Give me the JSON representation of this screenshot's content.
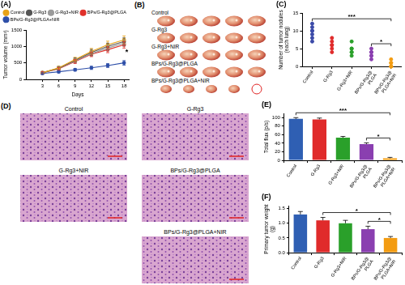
{
  "chart_data": [
    {
      "panel": "(A)",
      "type": "line",
      "x": [
        3,
        6,
        9,
        12,
        15,
        18
      ],
      "xlabel": "Days",
      "ylabel": "Tumor volume (mm³)",
      "xlim": [
        0,
        19
      ],
      "xticks": [
        3,
        6,
        9,
        12,
        15,
        18
      ],
      "ylim": [
        0,
        1500
      ],
      "yticks": [
        0,
        500,
        1000,
        1500
      ],
      "grid": false,
      "legend": "upper left",
      "marker": "circle",
      "series": [
        {
          "name": "Control",
          "color": "#e8a317",
          "values": [
            200,
            350,
            600,
            850,
            1050,
            1200
          ],
          "errors": [
            30,
            50,
            70,
            90,
            110,
            120
          ]
        },
        {
          "name": "G-Rg3",
          "color": "#555555",
          "values": [
            200,
            340,
            580,
            820,
            1000,
            1150
          ],
          "errors": [
            30,
            50,
            70,
            90,
            100,
            110
          ]
        },
        {
          "name": "G-Rg3+NIR",
          "color": "#9a9a9a",
          "values": [
            200,
            330,
            560,
            780,
            950,
            1100
          ],
          "errors": [
            30,
            40,
            60,
            80,
            90,
            100
          ]
        },
        {
          "name": "BPs/G-Rg3@PLGA",
          "color": "#e0302a",
          "values": [
            200,
            320,
            540,
            760,
            900,
            1050
          ],
          "errors": [
            30,
            40,
            60,
            70,
            90,
            100
          ]
        },
        {
          "name": "BPs/G-Rg3@PLGA+NIR",
          "color": "#2e4fa8",
          "values": [
            180,
            230,
            290,
            350,
            420,
            500
          ],
          "errors": [
            20,
            30,
            40,
            50,
            60,
            70
          ]
        }
      ],
      "annotations": [
        {
          "text": "*",
          "x": 18.5,
          "y": 820
        }
      ]
    },
    {
      "panel": "(C)",
      "type": "scatter",
      "categories": [
        "Control",
        "G-Rg3",
        "G-Rg3+NIR",
        "BPs/G-Rg3@PLGA",
        "BPs/G-Rg3@PLGA+NIR"
      ],
      "ylabel": "Number of tumor nodules (each lung)",
      "ylim": [
        0,
        15
      ],
      "yticks": [
        0,
        5,
        10,
        15
      ],
      "grid": false,
      "marker": "circle",
      "colors": [
        "#3b4aa8",
        "#e02b2b",
        "#2aa02a",
        "#8a3fb0",
        "#f39c12"
      ],
      "values": [
        [
          12,
          11,
          10,
          10,
          9,
          8,
          7
        ],
        [
          8,
          7,
          6,
          6,
          5,
          4
        ],
        [
          7,
          5,
          5,
          4,
          4,
          3
        ],
        [
          5,
          4,
          4,
          3,
          3,
          2
        ],
        [
          2,
          1,
          1,
          0,
          0,
          0
        ]
      ],
      "significance": [
        {
          "from": "Control",
          "to": "BPs/G-Rg3@PLGA+NIR",
          "label": "***"
        },
        {
          "from": "BPs/G-Rg3@PLGA",
          "to": "BPs/G-Rg3@PLGA+NIR",
          "label": "*"
        }
      ]
    },
    {
      "panel": "(E)",
      "type": "bar",
      "categories": [
        "Control",
        "G-Rg3",
        "G-Rg3+NIR",
        "BPs/G-Rg3@PLGA",
        "BPs/G-Rg3@PLGA+NIR"
      ],
      "ylabel": "Total flux (p/s)",
      "ylim": [
        0,
        110
      ],
      "yticks": [
        0,
        20,
        40,
        60,
        80,
        100
      ],
      "grid": false,
      "colors": [
        "#2f5fb3",
        "#e02b2b",
        "#2aa02a",
        "#8a3fb0",
        "#f39c12"
      ],
      "values": [
        97,
        96,
        53,
        38,
        5
      ],
      "errors": [
        3,
        3,
        3,
        3,
        2
      ],
      "significance": [
        {
          "from": "Control",
          "to": "BPs/G-Rg3@PLGA+NIR",
          "label": "***"
        },
        {
          "from": "BPs/G-Rg3@PLGA",
          "to": "BPs/G-Rg3@PLGA+NIR",
          "label": "*"
        }
      ]
    },
    {
      "panel": "(F)",
      "type": "bar",
      "categories": [
        "Control",
        "G-Rg3",
        "G-Rg3+NIR",
        "BPs/G-Rg3@PLGA",
        "BPs/G-Rg3@PLGA+NIR"
      ],
      "ylabel": "Primary tumor weight (g)",
      "ylim": [
        0,
        1.6
      ],
      "yticks": [
        {
          "value": 0,
          "label": "0.0"
        },
        {
          "value": 0.5,
          "label": "0.5"
        },
        {
          "value": 1,
          "label": "1.0"
        },
        {
          "value": 1.5,
          "label": "1.5"
        }
      ],
      "grid": false,
      "colors": [
        "#2f5fb3",
        "#e02b2b",
        "#2aa02a",
        "#8a3fb0",
        "#f39c12"
      ],
      "values": [
        1.3,
        1.1,
        1.0,
        0.8,
        0.5
      ],
      "errors": [
        0.1,
        0.1,
        0.1,
        0.1,
        0.05
      ],
      "significance": [
        {
          "from": "G-Rg3",
          "to": "BPs/G-Rg3@PLGA+NIR",
          "label": "*"
        },
        {
          "from": "BPs/G-Rg3@PLGA",
          "to": "BPs/G-Rg3@PLGA+NIR",
          "label": "*"
        }
      ]
    }
  ],
  "image_panels": [
    {
      "panel": "(B)",
      "labels": [
        "Control",
        "G-Rg3",
        "G-Rg3+NIR",
        "BPs/G-Rg3@PLGA",
        "BPs/G-Rg3@PLGA+NIR"
      ]
    },
    {
      "panel": "(D)",
      "labels": [
        "Control",
        "G-Rg3",
        "G-Rg3+NIR",
        "BPs/G-Rg3@PLGA",
        "BPs/G-Rg3@PLGA+NIR"
      ]
    }
  ]
}
